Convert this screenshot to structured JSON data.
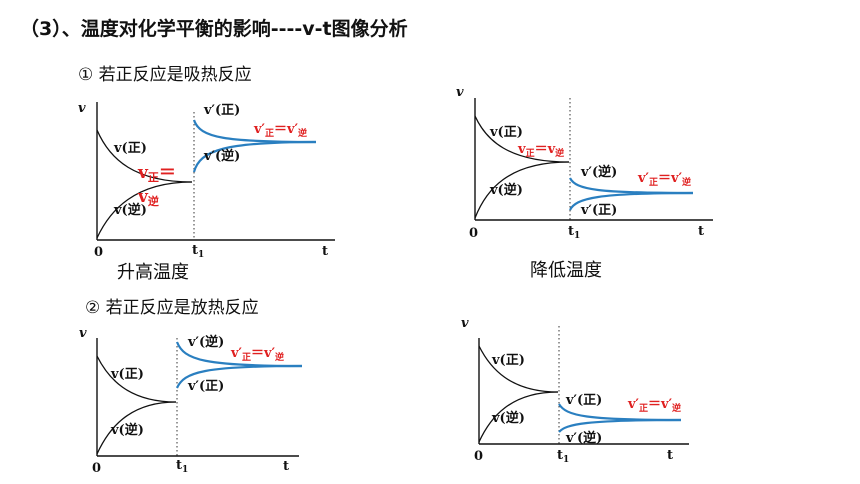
{
  "title": "（3）、温度对化学平衡的影响----v-t图像分析",
  "case1": "① 若正反应是吸热反应",
  "case2": "② 若正反应是放热反应",
  "captions": {
    "raise": "升高温度",
    "lower": "降低温度"
  },
  "labels": {
    "v": "v",
    "t": "t",
    "origin": "0",
    "t1": "t",
    "t1_sub": "1",
    "v_fwd": "v(正)",
    "v_rev": "v(逆)",
    "vp_fwd": "v′(正)",
    "vp_rev": "v′(逆)",
    "eq_v": "v",
    "eq_fwd_sub": "正",
    "eq_rev_sub": "逆",
    "eq_sign": "＝",
    "eq_vp": "v′"
  },
  "colors": {
    "new_rates": "#2a7fc0",
    "equality_text": "#e02020"
  }
}
